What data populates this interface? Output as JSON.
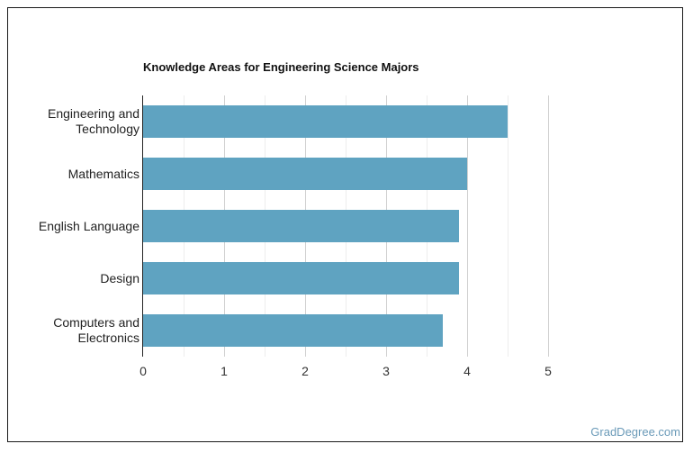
{
  "chart_data": {
    "type": "bar",
    "orientation": "horizontal",
    "title": "Knowledge Areas for Engineering Science Majors",
    "categories": [
      "Engineering and Technology",
      "Mathematics",
      "English Language",
      "Design",
      "Computers and Electronics"
    ],
    "category_lines": [
      [
        "Engineering and",
        "Technology"
      ],
      [
        "Mathematics"
      ],
      [
        "English Language"
      ],
      [
        "Design"
      ],
      [
        "Computers and",
        "Electronics"
      ]
    ],
    "values": [
      4.5,
      4.0,
      3.9,
      3.9,
      3.7
    ],
    "xlabel": "",
    "ylabel": "",
    "xlim": [
      0,
      5
    ],
    "xticks": [
      "0",
      "1",
      "2",
      "3",
      "4",
      "5"
    ],
    "grid": true,
    "bar_color": "#5fa3c1"
  },
  "credit": "GradDegree.com",
  "colors": {
    "bar": "#5fa3c1",
    "credit": "#6a9ab8",
    "grid_major": "#d0d0d0",
    "grid_minor": "#ececec"
  }
}
